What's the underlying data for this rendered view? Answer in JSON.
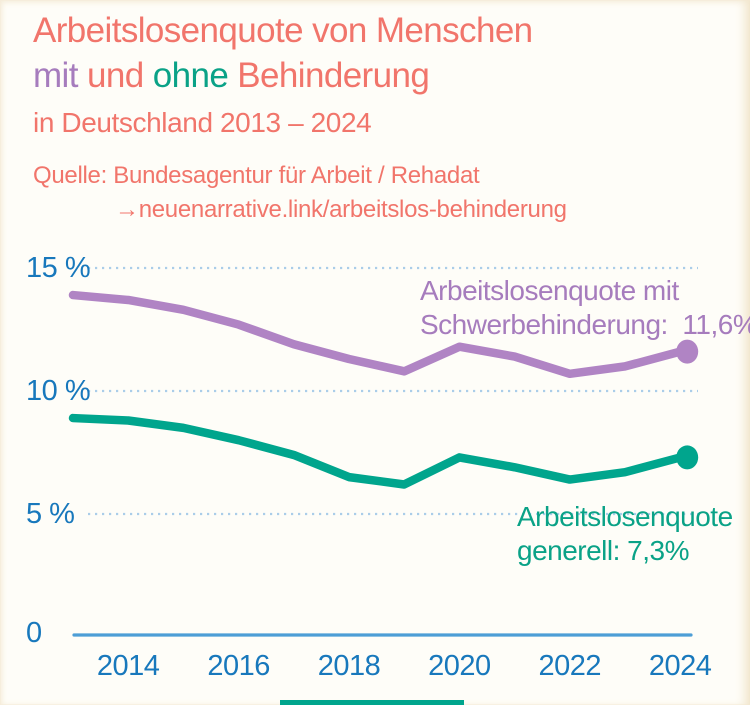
{
  "title": {
    "line1": "Arbeitslosenquote von Menschen",
    "mit": "mit",
    "und": " und ",
    "ohne": "ohne",
    "behinderung": " Behinderung",
    "subtitle": "in Deutschland 2013 – 2024"
  },
  "source": {
    "line1": "Quelle: Bundesagentur für Arbeit / Rehadat",
    "line2": "→neuenarrative.link/arbeitslos-behinderung"
  },
  "colors": {
    "coral": "#f1756b",
    "purple_line": "#b084c4",
    "purple_text": "#a67cbd",
    "teal_line": "#00a58d",
    "teal_text": "#0aa287",
    "blue_text": "#1878bc",
    "axis_line": "#4d9ed6",
    "gridline": "#aacde9",
    "background": "#fefdf8"
  },
  "chart_data": {
    "type": "line",
    "title": "Arbeitslosenquote von Menschen mit und ohne Behinderung in Deutschland 2013 – 2024",
    "x": [
      2013,
      2014,
      2015,
      2016,
      2017,
      2018,
      2019,
      2020,
      2021,
      2022,
      2023,
      2024
    ],
    "series": [
      {
        "name": "Arbeitslosenquote mit Schwerbehinderung",
        "color": "#b084c4",
        "text_color": "#a67cbd",
        "values": [
          13.9,
          13.7,
          13.3,
          12.7,
          11.9,
          11.3,
          10.8,
          11.8,
          11.4,
          10.7,
          11.0,
          11.6
        ],
        "annotation_line1": "Arbeitslosenquote mit",
        "annotation_line2": "Schwerbehinderung:  11,6%",
        "final_value": "11,6%"
      },
      {
        "name": "Arbeitslosenquote generell",
        "color": "#00a58d",
        "text_color": "#0aa287",
        "values": [
          8.9,
          8.8,
          8.5,
          8.0,
          7.4,
          6.5,
          6.2,
          7.3,
          6.9,
          6.4,
          6.7,
          7.3
        ],
        "annotation_line1": "Arbeitslosenquote",
        "annotation_line2": "generell: 7,3%",
        "final_value": "7,3%"
      }
    ],
    "yticks": [
      {
        "label": "15 %",
        "value": 15
      },
      {
        "label": "10 %",
        "value": 10
      },
      {
        "label": "5 %",
        "value": 5
      },
      {
        "label": "0",
        "value": 0
      }
    ],
    "xticks": [
      "2014",
      "2016",
      "2018",
      "2020",
      "2022",
      "2024"
    ],
    "ylim": [
      0,
      15.2
    ],
    "grid": "dotted-horizontal",
    "legend": "inline-annotations"
  }
}
